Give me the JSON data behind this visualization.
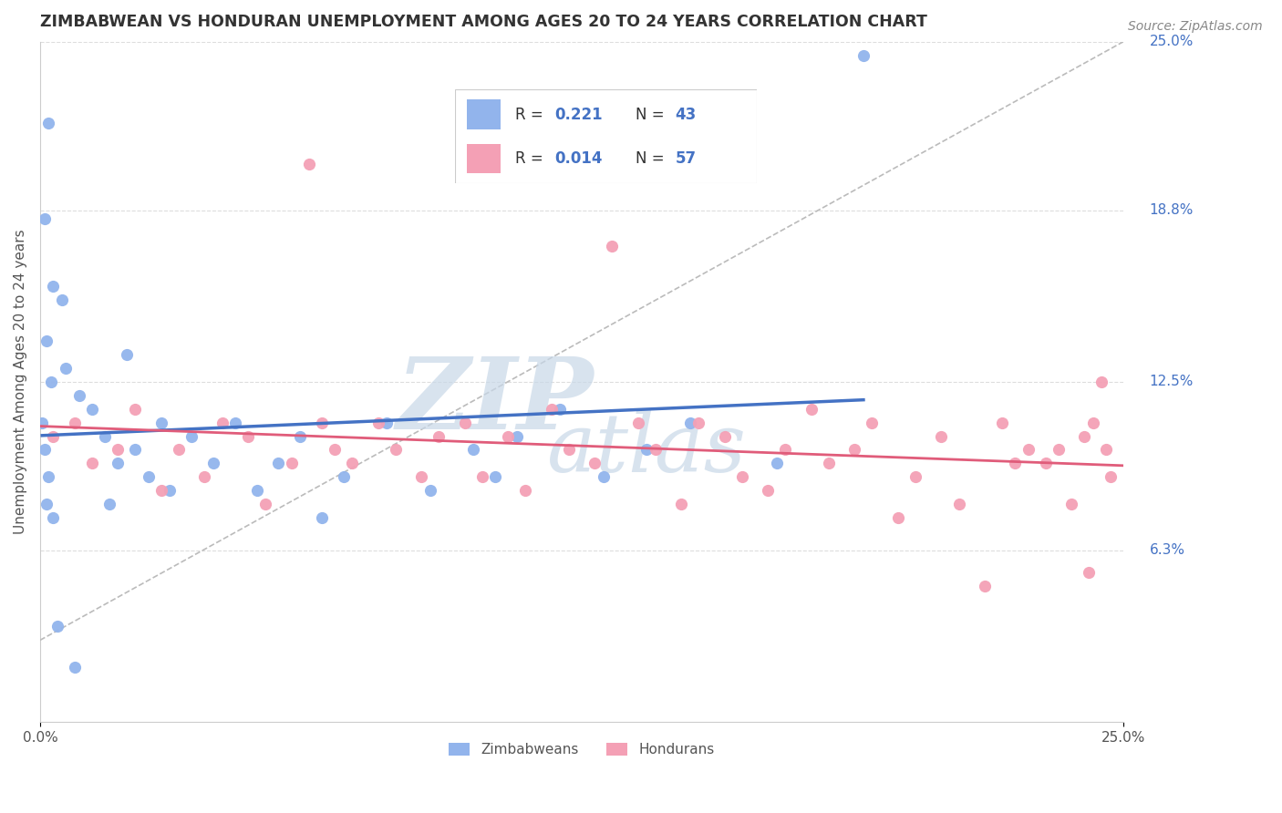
{
  "title": "ZIMBABWEAN VS HONDURAN UNEMPLOYMENT AMONG AGES 20 TO 24 YEARS CORRELATION CHART",
  "source": "Source: ZipAtlas.com",
  "ylabel": "Unemployment Among Ages 20 to 24 years",
  "xlim": [
    0.0,
    25.0
  ],
  "ylim": [
    0.0,
    25.0
  ],
  "zimbabwe_R": 0.221,
  "zimbabwe_N": 43,
  "honduras_R": 0.014,
  "honduras_N": 57,
  "zimbabwe_color": "#92b4ec",
  "honduras_color": "#f4a0b5",
  "zimbabwe_line_color": "#4472c4",
  "honduras_line_color": "#e05c7a",
  "watermark_color": "#c8d8e8",
  "grid_color": "#dddddd",
  "right_label_color": "#4472c4",
  "legend_text_color_blue": "#4472c4",
  "zimbabwe_x": [
    0.2,
    0.1,
    0.3,
    0.15,
    0.25,
    0.05,
    0.1,
    0.2,
    0.15,
    0.3,
    0.5,
    0.6,
    0.4,
    0.8,
    0.9,
    1.2,
    1.5,
    1.8,
    2.0,
    1.6,
    2.2,
    2.5,
    2.8,
    3.0,
    3.5,
    4.0,
    4.5,
    5.0,
    5.5,
    6.0,
    6.5,
    7.0,
    8.0,
    9.0,
    10.0,
    10.5,
    11.0,
    12.0,
    13.0,
    14.0,
    15.0,
    17.0,
    19.0
  ],
  "zimbabwe_y": [
    22.0,
    18.5,
    16.0,
    14.0,
    12.5,
    11.0,
    10.0,
    9.0,
    8.0,
    7.5,
    15.5,
    13.0,
    3.5,
    2.0,
    12.0,
    11.5,
    10.5,
    9.5,
    13.5,
    8.0,
    10.0,
    9.0,
    11.0,
    8.5,
    10.5,
    9.5,
    11.0,
    8.5,
    9.5,
    10.5,
    7.5,
    9.0,
    11.0,
    8.5,
    10.0,
    9.0,
    10.5,
    11.5,
    9.0,
    10.0,
    11.0,
    9.5,
    24.5
  ],
  "honduras_x": [
    0.3,
    0.8,
    1.2,
    1.8,
    2.2,
    2.8,
    3.2,
    3.8,
    4.2,
    4.8,
    5.2,
    5.8,
    6.2,
    6.5,
    6.8,
    7.2,
    7.8,
    8.2,
    8.8,
    9.2,
    9.8,
    10.2,
    10.8,
    11.2,
    11.8,
    12.2,
    12.8,
    13.2,
    13.8,
    14.2,
    14.8,
    15.2,
    15.8,
    16.2,
    16.8,
    17.2,
    17.8,
    18.2,
    18.8,
    19.2,
    19.8,
    20.2,
    20.8,
    21.2,
    21.8,
    22.2,
    22.8,
    23.2,
    23.8,
    24.2,
    24.5,
    24.6,
    24.7,
    24.3,
    24.1,
    23.5,
    22.5
  ],
  "honduras_y": [
    10.5,
    11.0,
    9.5,
    10.0,
    11.5,
    8.5,
    10.0,
    9.0,
    11.0,
    10.5,
    8.0,
    9.5,
    20.5,
    11.0,
    10.0,
    9.5,
    11.0,
    10.0,
    9.0,
    10.5,
    11.0,
    9.0,
    10.5,
    8.5,
    11.5,
    10.0,
    9.5,
    17.5,
    11.0,
    10.0,
    8.0,
    11.0,
    10.5,
    9.0,
    8.5,
    10.0,
    11.5,
    9.5,
    10.0,
    11.0,
    7.5,
    9.0,
    10.5,
    8.0,
    5.0,
    11.0,
    10.0,
    9.5,
    8.0,
    5.5,
    12.5,
    10.0,
    9.0,
    11.0,
    10.5,
    10.0,
    9.5
  ]
}
